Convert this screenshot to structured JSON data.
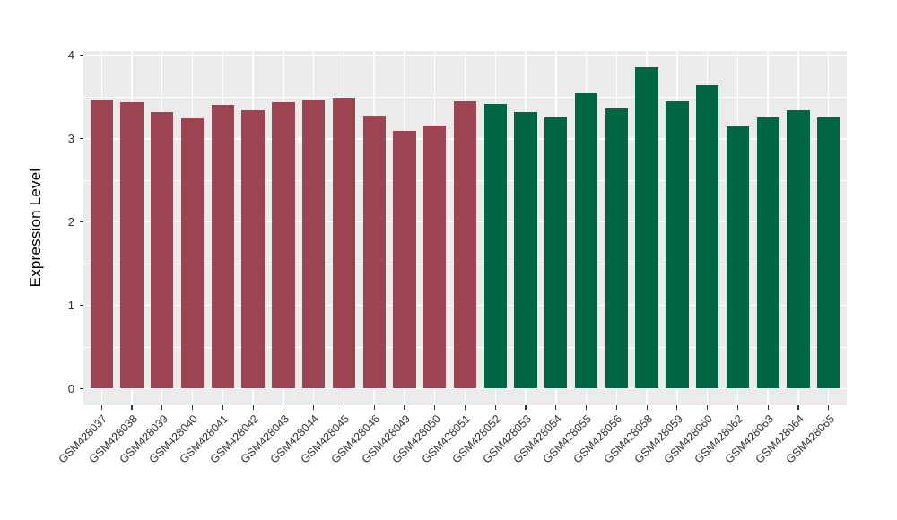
{
  "figure": {
    "background_color": "#FFFFFF",
    "panel_background_color": "#EBEBEB",
    "gridline_color": "#FFFFFF",
    "tick_color": "#333333",
    "axis_text_color": "#333333",
    "axis_title_color": "#000000"
  },
  "chart_data": {
    "type": "bar",
    "title": "",
    "xlabel": "",
    "ylabel": "Expression Level",
    "ylim": [
      -0.19,
      4.05
    ],
    "yticks": [
      0,
      1,
      2,
      3,
      4
    ],
    "yticks_minor": [
      0.5,
      1.5,
      2.5,
      3.5
    ],
    "grid": "major and minor horizontal white lines, vertical white line at each category center, on gray panel",
    "legend_position": "none",
    "x_tick_label_rotation_deg": 45,
    "series": [
      {
        "name": "group-1-dark-red",
        "color": "#9C4452",
        "points": [
          {
            "label": "GSM428037",
            "value": 3.47
          },
          {
            "label": "GSM428038",
            "value": 3.44
          },
          {
            "label": "GSM428039",
            "value": 3.32
          },
          {
            "label": "GSM428040",
            "value": 3.25
          },
          {
            "label": "GSM428041",
            "value": 3.41
          },
          {
            "label": "GSM428042",
            "value": 3.34
          },
          {
            "label": "GSM428043",
            "value": 3.44
          },
          {
            "label": "GSM428044",
            "value": 3.46
          },
          {
            "label": "GSM428045",
            "value": 3.49
          },
          {
            "label": "GSM428046",
            "value": 3.28
          },
          {
            "label": "GSM428049",
            "value": 3.1
          },
          {
            "label": "GSM428050",
            "value": 3.16
          },
          {
            "label": "GSM428051",
            "value": 3.45
          }
        ]
      },
      {
        "name": "group-2-dark-green",
        "color": "#006646",
        "points": [
          {
            "label": "GSM428052",
            "value": 3.42
          },
          {
            "label": "GSM428053",
            "value": 3.32
          },
          {
            "label": "GSM428054",
            "value": 3.26
          },
          {
            "label": "GSM428055",
            "value": 3.55
          },
          {
            "label": "GSM428056",
            "value": 3.36
          },
          {
            "label": "GSM428058",
            "value": 3.86
          },
          {
            "label": "GSM428059",
            "value": 3.45
          },
          {
            "label": "GSM428060",
            "value": 3.64
          },
          {
            "label": "GSM428062",
            "value": 3.15
          },
          {
            "label": "GSM428063",
            "value": 3.26
          },
          {
            "label": "GSM428064",
            "value": 3.34
          },
          {
            "label": "GSM428065",
            "value": 3.26
          }
        ]
      }
    ]
  }
}
